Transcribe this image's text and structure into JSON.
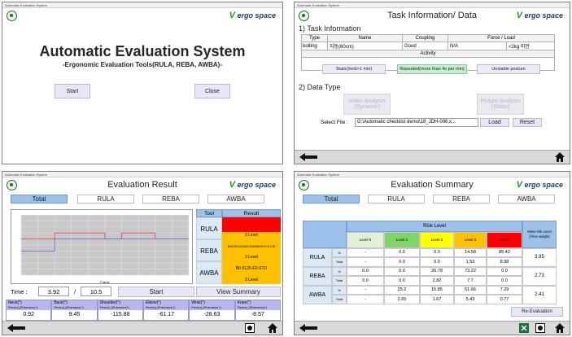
{
  "colors": {
    "accent_blue": "#9cc1ea",
    "risk_green": "#7fd46a",
    "risk_yellow": "#ffff00",
    "risk_orange": "#ffc000",
    "risk_red": "#ff0000",
    "bar": "#dadada"
  },
  "w1": {
    "titlebar": "Automatic Evaluation System",
    "logo_text": "ergo space",
    "logo_v": "V",
    "title": "Automatic Evaluation System",
    "subtitle": "-Ergonomic Evaluation Tools(RULA, REBA, AWBA)-",
    "start_label": "Start",
    "close_label": "Close"
  },
  "w2": {
    "titlebar": "Automatic Evaluation System",
    "title": "Task Information/ Data",
    "section1": "1) Task Information",
    "headers": [
      "Type",
      "Name",
      "Coupling",
      "Force / Load"
    ],
    "values": [
      "bolting",
      "자동(60cm)",
      "Good",
      "N/A",
      "<2kg 미만"
    ],
    "activity_label": "Activity",
    "activity_static": "Static(held>1 min)",
    "activity_repeated": "Repeated(more than 4x per min)",
    "activity_unstable": "Unstable posture",
    "section2": "2) Data Type",
    "video_analysis": "Video Analysis (Dynamic)",
    "picture_analysis": "Picture Analysis (Static)",
    "select_file_label": "Select File :",
    "file_path": "G:\\Automatic checklist demo\\18_JDH-006.x...",
    "load_label": "Load",
    "reset_label": "Reset"
  },
  "w3": {
    "titlebar": "Automatic Evaluation System",
    "title": "Evaluation Result",
    "tabs": [
      "Total",
      "RULA",
      "REBA",
      "AWBA"
    ],
    "tool_header": "Tool",
    "result_header": "Result",
    "rows": [
      {
        "tool": "RULA",
        "r1": "",
        "r2": "3 Level"
      },
      {
        "tool": "REBA",
        "r1": "B2M.0E1A14040-0540Wb09+H-4H-3H",
        "r2": "3 Level"
      },
      {
        "tool": "AWBA",
        "r1": "B0-5125-E0-STD",
        "r2": "3 Level"
      }
    ],
    "time_label": "Time :",
    "time_value": "3.92",
    "time_sep": "/",
    "time_total": "10.5",
    "start_label": "Start",
    "view_summary_label": "View Summary",
    "joints": [
      {
        "name": "Neck(°)",
        "sub": "Flexion(-)/Extension(+)",
        "value": "0.92"
      },
      {
        "name": "Back(°)",
        "sub": "Flexion(-)/Extension(+)",
        "value": "9.45"
      },
      {
        "name": "Shoulder(°)",
        "sub": "Flexion(-)/Extension(+)",
        "value": "-115.88"
      },
      {
        "name": "Elbow(°)",
        "sub": "Flexion(-)/Extension(+)",
        "value": "-61.17"
      },
      {
        "name": "Wrist(°)",
        "sub": "Flexion(-)/Extension(+)",
        "value": "-28.63"
      },
      {
        "name": "Knee(°)",
        "sub": "Flexion(-)/Extension(+)",
        "value": "-8.57"
      }
    ]
  },
  "chart_data": {
    "type": "line",
    "title": "",
    "xlabel": "Frame",
    "ylabel": "",
    "grid": true,
    "x": [
      0,
      10,
      20,
      30,
      40,
      50,
      60,
      70,
      80,
      90,
      100
    ],
    "series": [
      {
        "color": "#e05050",
        "values": [
          6,
          6,
          7,
          7,
          7,
          6,
          7,
          7,
          6,
          6,
          6
        ]
      },
      {
        "color": "#7070e0",
        "values": [
          4,
          4,
          6,
          6,
          6,
          6,
          6,
          6,
          6,
          6,
          6
        ]
      }
    ],
    "ylim": [
      0,
      10
    ],
    "xlim": [
      0,
      100
    ]
  },
  "w4": {
    "titlebar": "Automatic Evaluation System",
    "title": "Evaluation Summary",
    "tabs": [
      "Total",
      "RULA",
      "REBA",
      "AWBA"
    ],
    "risk_level_header": "Risk Level",
    "levels": [
      "Level 0",
      "Level 1",
      "Level 2",
      "Level 3",
      "Level 4"
    ],
    "mean_header": "Mean risk Level (Time weight)",
    "rows": [
      {
        "tool": "RULA",
        "pct": [
          "-",
          "0.0",
          "0.0",
          "14.58",
          "85.42"
        ],
        "total": [
          "-",
          "0.0",
          "0.0",
          "1.53",
          "8.98"
        ],
        "mean": "3.85"
      },
      {
        "tool": "REBA",
        "pct": [
          "0.0",
          "0.0",
          "26.78",
          "73.22",
          "0.0"
        ],
        "total": [
          "0.0",
          "0.0",
          "2.82",
          "7.7",
          "0.0"
        ],
        "mean": "2.73"
      },
      {
        "tool": "AWBA",
        "pct": [
          "-",
          "25.2",
          "15.85",
          "51.66",
          "7.29"
        ],
        "total": [
          "-",
          "2.65",
          "1.67",
          "5.43",
          "0.77"
        ],
        "mean": "2.41"
      }
    ],
    "pct_label": "%",
    "total_label": "Total",
    "re_eval_label": "Re-Evaluation"
  }
}
